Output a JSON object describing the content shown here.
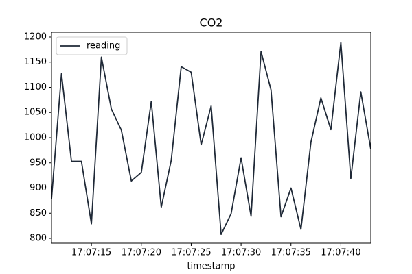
{
  "chart_data": {
    "type": "line",
    "title": "CO2",
    "xlabel": "timestamp",
    "x": [
      "17:07:11",
      "17:07:12",
      "17:07:13",
      "17:07:14",
      "17:07:15",
      "17:07:16",
      "17:07:17",
      "17:07:18",
      "17:07:19",
      "17:07:20",
      "17:07:21",
      "17:07:22",
      "17:07:23",
      "17:07:24",
      "17:07:25",
      "17:07:26",
      "17:07:27",
      "17:07:28",
      "17:07:29",
      "17:07:30",
      "17:07:31",
      "17:07:32",
      "17:07:33",
      "17:07:34",
      "17:07:35",
      "17:07:36",
      "17:07:37",
      "17:07:38",
      "17:07:39",
      "17:07:40",
      "17:07:41",
      "17:07:42",
      "17:07:43"
    ],
    "series": [
      {
        "name": "reading",
        "color": "#1f2937",
        "values": [
          878,
          1127,
          953,
          953,
          829,
          1160,
          1057,
          1015,
          914,
          931,
          1072,
          862,
          955,
          1141,
          1130,
          986,
          1063,
          808,
          849,
          960,
          844,
          1171,
          1095,
          843,
          900,
          818,
          991,
          1079,
          1016,
          1189,
          919,
          1091,
          977
        ]
      }
    ],
    "xlim": [
      "17:07:11",
      "17:07:43"
    ],
    "xticks": [
      "17:07:15",
      "17:07:20",
      "17:07:25",
      "17:07:30",
      "17:07:35",
      "17:07:40"
    ],
    "ylim": [
      790.5,
      1209.5
    ],
    "yticks": [
      800,
      850,
      900,
      950,
      1000,
      1050,
      1100,
      1150,
      1200
    ],
    "legend": "upper left"
  }
}
